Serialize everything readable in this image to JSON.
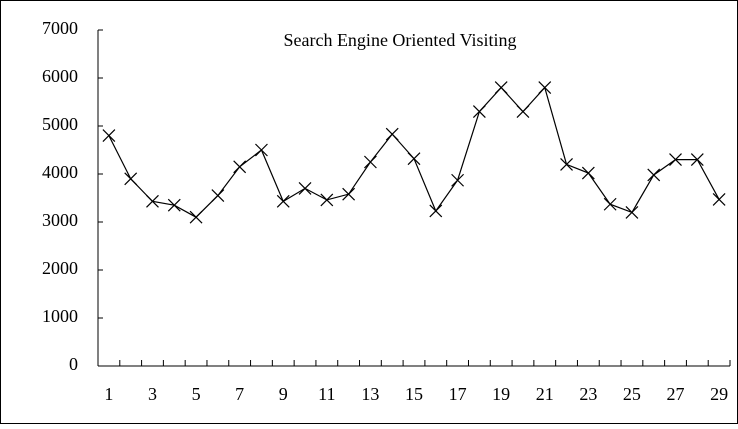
{
  "chart_data": {
    "type": "line",
    "title": "Search Engine Oriented Visiting",
    "categories": [
      "1",
      null,
      "3",
      null,
      "5",
      null,
      "7",
      null,
      "9",
      null,
      "11",
      null,
      "13",
      null,
      "15",
      null,
      "17",
      null,
      "19",
      null,
      "21",
      null,
      "23",
      null,
      "25",
      null,
      "27",
      null,
      "29"
    ],
    "values": [
      4800,
      3900,
      3430,
      3350,
      3100,
      3550,
      4150,
      4500,
      3430,
      3700,
      3460,
      3580,
      4250,
      4830,
      4320,
      3230,
      3870,
      5300,
      5800,
      5300,
      5800,
      4200,
      4020,
      3370,
      3200,
      3980,
      4300,
      4300,
      3470
    ],
    "color": "#000000",
    "marker": "x",
    "ylim": [
      0,
      7000
    ],
    "yticks": [
      0,
      1000,
      2000,
      3000,
      4000,
      5000,
      6000,
      7000
    ]
  }
}
